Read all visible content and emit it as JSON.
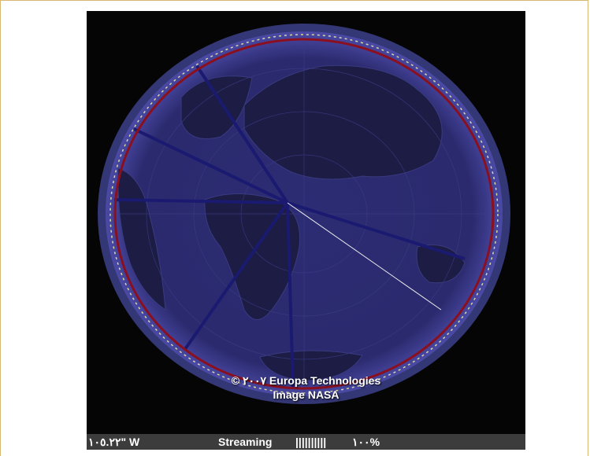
{
  "overlay": {
    "copyright": "© ٢٠٠٧ Europa Technologies",
    "credit": "Image NASA"
  },
  "status_bar": {
    "coordinate": "١٠٥.٢٢\" W",
    "streaming_label": "Streaming",
    "progress_bar": "||||||||||",
    "progress": "١٠٠%"
  }
}
